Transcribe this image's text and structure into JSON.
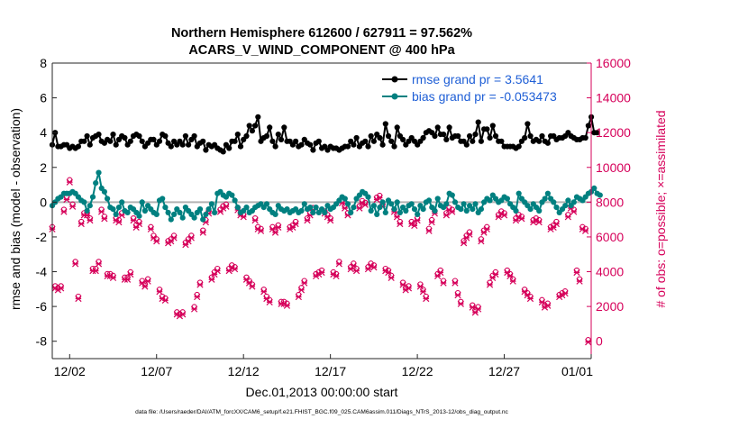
{
  "chart_data": {
    "type": "line",
    "title_line1": "Northern Hemisphere 612600 / 627911 = 97.562%",
    "title_line2": "ACARS_V_WIND_COMPONENT @ 400 hPa",
    "ylabel_left": "rmse and bias (model - observation)",
    "ylabel_right": "# of obs: o=possible; ×=assimilated",
    "xlabel": "Dec.01,2013 00:00:00 start",
    "footer": "data file: /Users/raeder/DAI/ATM_forcXX/CAM6_setup/f.e21.FHIST_BGC.f09_025.CAM6assim.011/Diags_NTrS_2013-12/obs_diag_output.nc",
    "xlim": [
      0.5,
      31.5
    ],
    "ylim_left": [
      -9,
      8
    ],
    "ylim_right": [
      -1000,
      16000
    ],
    "x_ticks": [
      {
        "value": 1.5,
        "label": "12/02"
      },
      {
        "value": 6.5,
        "label": "12/07"
      },
      {
        "value": 11.5,
        "label": "12/12"
      },
      {
        "value": 16.5,
        "label": "12/17"
      },
      {
        "value": 21.5,
        "label": "12/22"
      },
      {
        "value": 26.5,
        "label": "12/27"
      },
      {
        "value": 31.5,
        "label": "01/01"
      }
    ],
    "y_ticks_left": [
      8,
      6,
      4,
      2,
      0,
      -2,
      -4,
      -6,
      -8
    ],
    "y_ticks_right": [
      16000,
      14000,
      12000,
      10000,
      8000,
      6000,
      4000,
      2000,
      0
    ],
    "colors": {
      "rmse": "#000000",
      "bias": "#008080",
      "obs": "#d6005a",
      "legend_text": "#1f5fd6",
      "zero_line": "#b3b3b3"
    },
    "legend": [
      {
        "name": "rmse grand pr = 3.5641"
      },
      {
        "name": "bias grand pr = -0.053473"
      }
    ],
    "series": [
      {
        "name": "rmse",
        "values": [
          3.3,
          4.0,
          3.2,
          3.2,
          3.3,
          3.3,
          3.1,
          3.2,
          3.1,
          3.2,
          3.5,
          3.5,
          3.8,
          3.3,
          3.7,
          3.8,
          3.9,
          3.5,
          3.4,
          3.6,
          3.5,
          3.9,
          3.3,
          3.6,
          3.8,
          3.7,
          3.3,
          3.5,
          3.8,
          3.9,
          3.8,
          3.5,
          3.2,
          3.4,
          3.6,
          3.6,
          3.3,
          3.5,
          3.9,
          3.8,
          3.4,
          3.2,
          3.5,
          3.3,
          3.5,
          3.3,
          3.8,
          3.3,
          3.6,
          3.8,
          3.2,
          3.4,
          3.5,
          3.0,
          3.3,
          3.2,
          3.3,
          3.1,
          3.0,
          2.9,
          3.3,
          3.1,
          3.5,
          3.5,
          3.9,
          3.2,
          3.6,
          3.8,
          4.4,
          4.1,
          4.4,
          4.9,
          3.5,
          3.7,
          3.8,
          4.3,
          3.5,
          3.2,
          3.9,
          3.6,
          4.3,
          3.5,
          3.5,
          3.3,
          3.5,
          3.2,
          3.3,
          3.6,
          3.4,
          3.3,
          3.0,
          3.4,
          3.5,
          3.1,
          3.2,
          3.0,
          3.2,
          3.1,
          3.1,
          3.0,
          3.1,
          3.2,
          3.2,
          3.5,
          3.3,
          3.7,
          3.2,
          3.4,
          3.5,
          3.2,
          3.8,
          3.5,
          3.9,
          3.7,
          3.3,
          4.5,
          3.8,
          3.5,
          3.2,
          4.3,
          3.8,
          3.6,
          3.3,
          3.5,
          3.7,
          3.5,
          3.3,
          3.5,
          3.7,
          4.0,
          4.1,
          4.0,
          3.8,
          4.3,
          3.9,
          3.9,
          3.6,
          4.3,
          3.7,
          3.8,
          3.8,
          3.5,
          3.5,
          3.3,
          3.8,
          3.5,
          3.9,
          4.6,
          3.5,
          4.2,
          4.2,
          3.7,
          4.4,
          3.8,
          3.5,
          3.5,
          3.2,
          3.2,
          3.2,
          3.2,
          3.1,
          3.2,
          3.5,
          3.7,
          4.5,
          3.8,
          3.5,
          3.6,
          3.5,
          3.8,
          3.5,
          3.4,
          3.8,
          3.8,
          3.6,
          3.7,
          3.7,
          3.8,
          4.0,
          3.8,
          3.7,
          3.6,
          3.6,
          3.7,
          3.7,
          4.4,
          4.9,
          4.0,
          4.0
        ],
        "x_start": 0.5,
        "x_step": 0.1667
      },
      {
        "name": "bias",
        "values": [
          -0.2,
          0.0,
          0.2,
          0.3,
          0.5,
          0.5,
          0.5,
          0.6,
          0.5,
          0.3,
          0.1,
          0.0,
          -0.5,
          -0.2,
          0.3,
          1.1,
          1.7,
          0.8,
          0.6,
          0.2,
          -0.3,
          -0.4,
          -0.7,
          -0.3,
          0.0,
          -0.5,
          -0.6,
          -0.3,
          -0.4,
          -0.6,
          -0.8,
          0.0,
          -0.5,
          -0.2,
          -0.4,
          -0.6,
          -0.7,
          0.1,
          0.2,
          -0.3,
          -0.6,
          -1.0,
          -0.7,
          -0.4,
          -0.6,
          -0.9,
          -0.3,
          -0.5,
          -0.7,
          -0.9,
          -0.6,
          -0.4,
          -1.0,
          -0.7,
          -0.4,
          -0.1,
          -0.6,
          0.5,
          0.6,
          0.4,
          0.3,
          0.5,
          0.4,
          0.1,
          -0.3,
          -0.6,
          -0.5,
          -0.3,
          -0.6,
          -0.5,
          -0.3,
          -0.2,
          -0.1,
          -0.3,
          -0.1,
          -0.4,
          -0.6,
          -0.7,
          -0.2,
          -0.4,
          -0.5,
          -0.4,
          -0.6,
          -0.5,
          -0.4,
          -0.6,
          -0.5,
          -0.1,
          -0.4,
          -0.3,
          -0.6,
          -0.3,
          -0.6,
          -0.4,
          -0.6,
          -0.2,
          -0.4,
          -0.3,
          -0.1,
          0.1,
          0.3,
          0.2,
          -0.1,
          -0.6,
          -0.3,
          0.2,
          0.4,
          0.6,
          0.5,
          0.3,
          -0.5,
          -0.2,
          -0.7,
          -0.3,
          0.0,
          -0.6,
          0.1,
          -0.1,
          -0.4,
          0.0,
          -0.6,
          -0.3,
          -0.5,
          -0.2,
          -0.1,
          -0.4,
          -0.7,
          -0.2,
          -0.4,
          0.0,
          0.1,
          -0.3,
          -0.5,
          0.2,
          -0.2,
          -0.3,
          -0.1,
          0.5,
          0.4,
          0.0,
          -0.3,
          -0.4,
          -0.1,
          -0.5,
          -0.2,
          -0.4,
          -0.1,
          -0.6,
          -0.4,
          0.0,
          0.2,
          0.1,
          0.4,
          0.2,
          0.0,
          0.1,
          0.3,
          0.2,
          -0.1,
          -0.3,
          -0.5,
          0.5,
          0.2,
          0.0,
          -0.2,
          -0.4,
          -0.1,
          -0.3,
          -0.5,
          0.0,
          0.2,
          0.5,
          0.2,
          0.0,
          -0.3,
          -0.6,
          -0.4,
          -0.2,
          0.1,
          -0.2,
          0.0,
          0.3,
          0.2,
          0.1,
          0.3,
          0.5,
          0.6,
          0.8,
          0.5,
          0.4
        ],
        "x_start": 0.5,
        "x_step": 0.1667
      }
    ],
    "obs_possible": [
      {
        "x": 0.5,
        "y": 6500
      },
      {
        "x": 0.67,
        "y": 3100
      },
      {
        "x": 0.83,
        "y": 3000
      },
      {
        "x": 1.0,
        "y": 3100
      },
      {
        "x": 1.17,
        "y": 7500
      },
      {
        "x": 1.33,
        "y": 8200
      },
      {
        "x": 1.5,
        "y": 9200
      },
      {
        "x": 1.67,
        "y": 7800
      },
      {
        "x": 1.83,
        "y": 4500
      },
      {
        "x": 2.0,
        "y": 2500
      },
      {
        "x": 2.17,
        "y": 6800
      },
      {
        "x": 2.33,
        "y": 7300
      },
      {
        "x": 2.5,
        "y": 7300
      },
      {
        "x": 2.67,
        "y": 7000
      },
      {
        "x": 2.83,
        "y": 4100
      },
      {
        "x": 3.0,
        "y": 4100
      },
      {
        "x": 3.17,
        "y": 4500
      },
      {
        "x": 3.33,
        "y": 7500
      },
      {
        "x": 3.5,
        "y": 7100
      },
      {
        "x": 3.67,
        "y": 3800
      },
      {
        "x": 3.83,
        "y": 3800
      },
      {
        "x": 4.0,
        "y": 3700
      },
      {
        "x": 4.17,
        "y": 7000
      },
      {
        "x": 4.33,
        "y": 6900
      },
      {
        "x": 4.5,
        "y": 7300
      },
      {
        "x": 4.67,
        "y": 3600
      },
      {
        "x": 4.83,
        "y": 3600
      },
      {
        "x": 5.0,
        "y": 3900
      },
      {
        "x": 5.17,
        "y": 7000
      },
      {
        "x": 5.33,
        "y": 6600
      },
      {
        "x": 5.5,
        "y": 6800
      },
      {
        "x": 5.67,
        "y": 3400
      },
      {
        "x": 5.83,
        "y": 3200
      },
      {
        "x": 6.0,
        "y": 3500
      },
      {
        "x": 6.17,
        "y": 6500
      },
      {
        "x": 6.33,
        "y": 6000
      },
      {
        "x": 6.5,
        "y": 5800
      },
      {
        "x": 6.67,
        "y": 2900
      },
      {
        "x": 6.83,
        "y": 2500
      },
      {
        "x": 7.0,
        "y": 2400
      },
      {
        "x": 7.17,
        "y": 5700
      },
      {
        "x": 7.33,
        "y": 5800
      },
      {
        "x": 7.5,
        "y": 6000
      },
      {
        "x": 7.67,
        "y": 1600
      },
      {
        "x": 7.83,
        "y": 1500
      },
      {
        "x": 8.0,
        "y": 1600
      },
      {
        "x": 8.17,
        "y": 5600
      },
      {
        "x": 8.33,
        "y": 5800
      },
      {
        "x": 8.5,
        "y": 6000
      },
      {
        "x": 8.67,
        "y": 1900
      },
      {
        "x": 8.83,
        "y": 2600
      },
      {
        "x": 9.0,
        "y": 3300
      },
      {
        "x": 9.17,
        "y": 6300
      },
      {
        "x": 9.33,
        "y": 6900
      },
      {
        "x": 9.5,
        "y": 7400
      },
      {
        "x": 9.67,
        "y": 3600
      },
      {
        "x": 9.83,
        "y": 3900
      },
      {
        "x": 10.0,
        "y": 4100
      },
      {
        "x": 10.17,
        "y": 7500
      },
      {
        "x": 10.33,
        "y": 7700
      },
      {
        "x": 10.5,
        "y": 7800
      },
      {
        "x": 10.67,
        "y": 4100
      },
      {
        "x": 10.83,
        "y": 4300
      },
      {
        "x": 11.0,
        "y": 4200
      },
      {
        "x": 11.17,
        "y": 7600
      },
      {
        "x": 11.33,
        "y": 7300
      },
      {
        "x": 11.5,
        "y": 7200
      },
      {
        "x": 11.67,
        "y": 3600
      },
      {
        "x": 11.83,
        "y": 3400
      },
      {
        "x": 12.0,
        "y": 3200
      },
      {
        "x": 12.17,
        "y": 7000
      },
      {
        "x": 12.33,
        "y": 6500
      },
      {
        "x": 12.5,
        "y": 6400
      },
      {
        "x": 12.67,
        "y": 2900
      },
      {
        "x": 12.83,
        "y": 2500
      },
      {
        "x": 13.0,
        "y": 2300
      },
      {
        "x": 13.17,
        "y": 6500
      },
      {
        "x": 13.33,
        "y": 6300
      },
      {
        "x": 13.5,
        "y": 6600
      },
      {
        "x": 13.67,
        "y": 2200
      },
      {
        "x": 13.83,
        "y": 2200
      },
      {
        "x": 14.0,
        "y": 2100
      },
      {
        "x": 14.17,
        "y": 6500
      },
      {
        "x": 14.33,
        "y": 6600
      },
      {
        "x": 14.5,
        "y": 6800
      },
      {
        "x": 14.67,
        "y": 2600
      },
      {
        "x": 14.83,
        "y": 3000
      },
      {
        "x": 15.0,
        "y": 3400
      },
      {
        "x": 15.17,
        "y": 7000
      },
      {
        "x": 15.33,
        "y": 7300
      },
      {
        "x": 15.5,
        "y": 7600
      },
      {
        "x": 15.67,
        "y": 3800
      },
      {
        "x": 15.83,
        "y": 3900
      },
      {
        "x": 16.0,
        "y": 4000
      },
      {
        "x": 16.17,
        "y": 7400
      },
      {
        "x": 16.33,
        "y": 7200
      },
      {
        "x": 16.5,
        "y": 7000
      },
      {
        "x": 16.67,
        "y": 3900
      },
      {
        "x": 16.83,
        "y": 3800
      },
      {
        "x": 17.0,
        "y": 4500
      },
      {
        "x": 17.17,
        "y": 8000
      },
      {
        "x": 17.33,
        "y": 7700
      },
      {
        "x": 17.5,
        "y": 7300
      },
      {
        "x": 17.67,
        "y": 4200
      },
      {
        "x": 17.83,
        "y": 4400
      },
      {
        "x": 18.0,
        "y": 4100
      },
      {
        "x": 18.17,
        "y": 7700
      },
      {
        "x": 18.33,
        "y": 8000
      },
      {
        "x": 18.5,
        "y": 7900
      },
      {
        "x": 18.67,
        "y": 4200
      },
      {
        "x": 18.83,
        "y": 4400
      },
      {
        "x": 19.0,
        "y": 4300
      },
      {
        "x": 19.17,
        "y": 8200
      },
      {
        "x": 19.33,
        "y": 8300
      },
      {
        "x": 19.5,
        "y": 7800
      },
      {
        "x": 19.67,
        "y": 4100
      },
      {
        "x": 19.83,
        "y": 4000
      },
      {
        "x": 20.0,
        "y": 3700
      },
      {
        "x": 20.17,
        "y": 7500
      },
      {
        "x": 20.33,
        "y": 7200
      },
      {
        "x": 20.5,
        "y": 6800
      },
      {
        "x": 20.67,
        "y": 3300
      },
      {
        "x": 20.83,
        "y": 3000
      },
      {
        "x": 21.0,
        "y": 3100
      },
      {
        "x": 21.17,
        "y": 6800
      },
      {
        "x": 21.33,
        "y": 6700
      },
      {
        "x": 21.5,
        "y": 7000
      },
      {
        "x": 21.67,
        "y": 3200
      },
      {
        "x": 21.83,
        "y": 2900
      },
      {
        "x": 22.0,
        "y": 2500
      },
      {
        "x": 22.17,
        "y": 6400
      },
      {
        "x": 22.33,
        "y": 6900
      },
      {
        "x": 22.5,
        "y": 7400
      },
      {
        "x": 22.67,
        "y": 3800
      },
      {
        "x": 22.83,
        "y": 4000
      },
      {
        "x": 23.0,
        "y": 3400
      },
      {
        "x": 23.17,
        "y": 7300
      },
      {
        "x": 23.33,
        "y": 7600
      },
      {
        "x": 23.5,
        "y": 7500
      },
      {
        "x": 23.67,
        "y": 3400
      },
      {
        "x": 23.83,
        "y": 2700
      },
      {
        "x": 24.0,
        "y": 2200
      },
      {
        "x": 24.17,
        "y": 5700
      },
      {
        "x": 24.33,
        "y": 6000
      },
      {
        "x": 24.5,
        "y": 6200
      },
      {
        "x": 24.67,
        "y": 2000
      },
      {
        "x": 24.83,
        "y": 1700
      },
      {
        "x": 25.0,
        "y": 1900
      },
      {
        "x": 25.17,
        "y": 5800
      },
      {
        "x": 25.33,
        "y": 6300
      },
      {
        "x": 25.5,
        "y": 6500
      },
      {
        "x": 25.67,
        "y": 3300
      },
      {
        "x": 25.83,
        "y": 3700
      },
      {
        "x": 26.0,
        "y": 3900
      },
      {
        "x": 26.17,
        "y": 7200
      },
      {
        "x": 26.33,
        "y": 7400
      },
      {
        "x": 26.5,
        "y": 7300
      },
      {
        "x": 26.67,
        "y": 4000
      },
      {
        "x": 26.83,
        "y": 3800
      },
      {
        "x": 27.0,
        "y": 3500
      },
      {
        "x": 27.17,
        "y": 7000
      },
      {
        "x": 27.33,
        "y": 7200
      },
      {
        "x": 27.5,
        "y": 7100
      },
      {
        "x": 27.67,
        "y": 2900
      },
      {
        "x": 27.83,
        "y": 2700
      },
      {
        "x": 28.0,
        "y": 2500
      },
      {
        "x": 28.17,
        "y": 6900
      },
      {
        "x": 28.33,
        "y": 7000
      },
      {
        "x": 28.5,
        "y": 6900
      },
      {
        "x": 28.67,
        "y": 2300
      },
      {
        "x": 28.83,
        "y": 2000
      },
      {
        "x": 29.0,
        "y": 2100
      },
      {
        "x": 29.17,
        "y": 6500
      },
      {
        "x": 29.33,
        "y": 6600
      },
      {
        "x": 29.5,
        "y": 6800
      },
      {
        "x": 29.67,
        "y": 2600
      },
      {
        "x": 29.83,
        "y": 2700
      },
      {
        "x": 30.0,
        "y": 2800
      },
      {
        "x": 30.17,
        "y": 7200
      },
      {
        "x": 30.33,
        "y": 7700
      },
      {
        "x": 30.5,
        "y": 7500
      },
      {
        "x": 30.67,
        "y": 4000
      },
      {
        "x": 30.83,
        "y": 3500
      },
      {
        "x": 31.0,
        "y": 6500
      },
      {
        "x": 31.17,
        "y": 6400
      },
      {
        "x": 31.33,
        "y": 0
      }
    ]
  }
}
